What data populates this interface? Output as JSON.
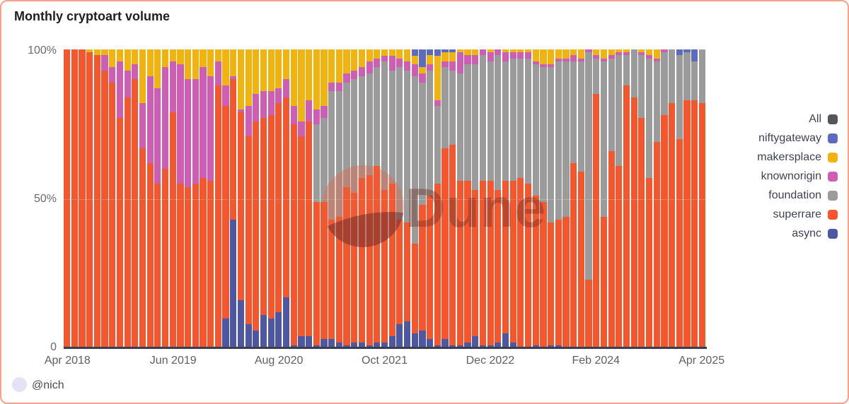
{
  "header": {
    "title": "Monthly cryptoart volume"
  },
  "footer": {
    "attribution": "@nich"
  },
  "watermark": {
    "text": "Dune"
  },
  "y_axis": {
    "ticks": [
      "100%",
      "50%",
      "0"
    ],
    "range": [
      0,
      100
    ],
    "gridline_at": 50
  },
  "x_axis": {
    "tick_labels": [
      "Apr 2018",
      "Jun 2019",
      "Aug 2020",
      "Oct 2021",
      "Dec 2022",
      "Feb 2024",
      "Apr 2025"
    ],
    "tick_month_indices": [
      0,
      14,
      28,
      42,
      56,
      70,
      84
    ]
  },
  "legend": {
    "position": "right",
    "items": [
      {
        "label": "All",
        "color": "#55565b"
      },
      {
        "label": "niftygateway",
        "color": "#5c6bc0"
      },
      {
        "label": "makersplace",
        "color": "#f0b30f"
      },
      {
        "label": "knownorigin",
        "color": "#cd5eb4"
      },
      {
        "label": "foundation",
        "color": "#9b9b9b"
      },
      {
        "label": "superrare",
        "color": "#f4572e"
      },
      {
        "label": "async",
        "color": "#4e57a2"
      }
    ]
  },
  "chart_data": {
    "type": "bar",
    "stacked": true,
    "normalized": true,
    "unit": "percent of monthly volume",
    "title": "Monthly cryptoart volume",
    "ylim": [
      0,
      100
    ],
    "grid": "dotted line at 50%",
    "legend_position": "right",
    "x": [
      "Apr 2018",
      "May 2018",
      "Jun 2018",
      "Jul 2018",
      "Aug 2018",
      "Sep 2018",
      "Oct 2018",
      "Nov 2018",
      "Dec 2018",
      "Jan 2019",
      "Feb 2019",
      "Mar 2019",
      "Apr 2019",
      "May 2019",
      "Jun 2019",
      "Jul 2019",
      "Aug 2019",
      "Sep 2019",
      "Oct 2019",
      "Nov 2019",
      "Dec 2019",
      "Jan 2020",
      "Feb 2020",
      "Mar 2020",
      "Apr 2020",
      "May 2020",
      "Jun 2020",
      "Jul 2020",
      "Aug 2020",
      "Sep 2020",
      "Oct 2020",
      "Nov 2020",
      "Dec 2020",
      "Jan 2021",
      "Feb 2021",
      "Mar 2021",
      "Apr 2021",
      "May 2021",
      "Jun 2021",
      "Jul 2021",
      "Aug 2021",
      "Sep 2021",
      "Oct 2021",
      "Nov 2021",
      "Dec 2021",
      "Jan 2022",
      "Feb 2022",
      "Mar 2022",
      "Apr 2022",
      "May 2022",
      "Jun 2022",
      "Jul 2022",
      "Aug 2022",
      "Sep 2022",
      "Oct 2022",
      "Nov 2022",
      "Dec 2022",
      "Jan 2023",
      "Feb 2023",
      "Mar 2023",
      "Apr 2023",
      "May 2023",
      "Jun 2023",
      "Jul 2023",
      "Aug 2023",
      "Sep 2023",
      "Oct 2023",
      "Nov 2023",
      "Dec 2023",
      "Jan 2024",
      "Feb 2024",
      "Mar 2024",
      "Apr 2024",
      "May 2024",
      "Jun 2024",
      "Jul 2024",
      "Aug 2024",
      "Sep 2024",
      "Oct 2024",
      "Nov 2024",
      "Dec 2024",
      "Jan 2025",
      "Feb 2025",
      "Mar 2025",
      "Apr 2025"
    ],
    "series": [
      {
        "name": "async",
        "color": "#4e57a2",
        "values": [
          0,
          0,
          0,
          0,
          0,
          0,
          0,
          0,
          0,
          0,
          0,
          0,
          0,
          0,
          0,
          0,
          0,
          0,
          0,
          0,
          0,
          10,
          43,
          16,
          8,
          6,
          11,
          10,
          12,
          17,
          1,
          4,
          4,
          1,
          3,
          3,
          2,
          1,
          2,
          2,
          1,
          2,
          2,
          4,
          8,
          9,
          5,
          6,
          3,
          1,
          3,
          1,
          1,
          2,
          4,
          1,
          1,
          2,
          5,
          2,
          0,
          0,
          1,
          0,
          1,
          1,
          0,
          0,
          0,
          0,
          0,
          0,
          0,
          0,
          0,
          0,
          0,
          0,
          0,
          0,
          0,
          0,
          0,
          0,
          0
        ]
      },
      {
        "name": "superrare",
        "color": "#f4572e",
        "values": [
          100,
          100,
          100,
          99,
          98,
          93,
          89,
          77,
          84,
          90,
          67,
          62,
          55,
          60,
          79,
          55,
          54,
          55,
          57,
          56,
          88,
          71,
          47,
          63,
          63,
          70,
          66,
          68,
          70,
          67,
          74,
          67,
          72,
          48,
          46,
          40,
          42,
          53,
          50,
          55,
          57,
          59,
          51,
          51,
          35,
          33,
          30,
          42,
          48,
          54,
          64,
          67,
          55,
          54,
          49,
          55,
          55,
          51,
          51,
          54,
          57,
          55,
          50,
          49,
          41,
          42,
          44,
          62,
          59,
          23,
          85,
          44,
          66,
          61,
          88,
          84,
          77,
          57,
          69,
          78,
          82,
          70,
          83,
          83,
          82
        ]
      },
      {
        "name": "foundation",
        "color": "#9b9b9b",
        "values": [
          0,
          0,
          0,
          0,
          0,
          0,
          0,
          0,
          0,
          0,
          0,
          0,
          0,
          0,
          0,
          0,
          0,
          0,
          0,
          0,
          0,
          0,
          0,
          0,
          0,
          0,
          0,
          0,
          0,
          0,
          0,
          0,
          0,
          26,
          28,
          43,
          42,
          35,
          38,
          34,
          34,
          33,
          43,
          38,
          51,
          51,
          56,
          41,
          42,
          26,
          27,
          25,
          36,
          39,
          42,
          42,
          40,
          45,
          40,
          41,
          40,
          42,
          44,
          45,
          52,
          53,
          52,
          34,
          37,
          76,
          12,
          52,
          31,
          37,
          10,
          16,
          21,
          40,
          27,
          21,
          18,
          28,
          16,
          13,
          18
        ]
      },
      {
        "name": "knownorigin",
        "color": "#cd5eb4",
        "values": [
          0,
          0,
          0,
          0,
          0,
          5,
          5,
          19,
          9,
          5,
          15,
          29,
          32,
          34,
          17,
          40,
          36,
          35,
          37,
          35,
          8,
          7,
          1,
          1,
          10,
          9,
          9,
          8,
          5,
          6,
          6,
          5,
          7,
          5,
          4,
          3,
          3,
          3,
          3,
          3,
          4,
          3,
          2,
          5,
          3,
          3,
          4,
          3,
          2,
          2,
          2,
          3,
          7,
          3,
          3,
          2,
          3,
          2,
          3,
          2,
          2,
          2,
          1,
          1,
          1,
          1,
          1,
          2,
          1,
          1,
          1,
          1,
          1,
          1,
          1,
          0,
          1,
          1,
          1,
          1,
          0,
          0,
          0,
          0,
          0
        ]
      },
      {
        "name": "makersplace",
        "color": "#f0b30f",
        "values": [
          0,
          0,
          0,
          1,
          2,
          2,
          6,
          4,
          7,
          5,
          18,
          9,
          13,
          6,
          4,
          5,
          10,
          10,
          6,
          9,
          4,
          12,
          9,
          20,
          19,
          15,
          14,
          14,
          13,
          10,
          19,
          24,
          17,
          20,
          19,
          11,
          11,
          8,
          7,
          6,
          4,
          3,
          2,
          2,
          3,
          4,
          3,
          2,
          3,
          15,
          3,
          3,
          1,
          2,
          2,
          0,
          1,
          0,
          1,
          1,
          1,
          1,
          4,
          5,
          5,
          3,
          3,
          2,
          3,
          0,
          2,
          3,
          2,
          1,
          1,
          0,
          1,
          2,
          3,
          0,
          0,
          0,
          0,
          0,
          0
        ]
      },
      {
        "name": "niftygateway",
        "color": "#5c6bc0",
        "values": [
          0,
          0,
          0,
          0,
          0,
          0,
          0,
          0,
          0,
          0,
          0,
          0,
          0,
          0,
          0,
          0,
          0,
          0,
          0,
          0,
          0,
          0,
          0,
          0,
          0,
          0,
          0,
          0,
          0,
          0,
          0,
          0,
          0,
          0,
          0,
          0,
          0,
          0,
          0,
          0,
          0,
          0,
          0,
          0,
          0,
          0,
          2,
          6,
          2,
          2,
          1,
          1,
          0,
          0,
          0,
          0,
          0,
          0,
          0,
          0,
          0,
          0,
          0,
          0,
          0,
          0,
          0,
          0,
          0,
          0,
          0,
          0,
          0,
          0,
          0,
          0,
          0,
          0,
          0,
          0,
          0,
          2,
          1,
          4,
          0
        ]
      },
      {
        "name": "All",
        "color": "#55565b",
        "values": [
          0,
          0,
          0,
          0,
          0,
          0,
          0,
          0,
          0,
          0,
          0,
          0,
          0,
          0,
          0,
          0,
          0,
          0,
          0,
          0,
          0,
          0,
          0,
          0,
          0,
          0,
          0,
          0,
          0,
          0,
          0,
          0,
          0,
          0,
          0,
          0,
          0,
          0,
          0,
          0,
          0,
          0,
          0,
          0,
          0,
          0,
          0,
          0,
          0,
          0,
          0,
          0,
          0,
          0,
          0,
          0,
          0,
          0,
          0,
          0,
          0,
          0,
          0,
          0,
          0,
          0,
          0,
          0,
          0,
          0,
          0,
          0,
          0,
          0,
          0,
          0,
          0,
          0,
          0,
          0,
          0,
          0,
          0,
          0,
          0
        ]
      }
    ]
  }
}
